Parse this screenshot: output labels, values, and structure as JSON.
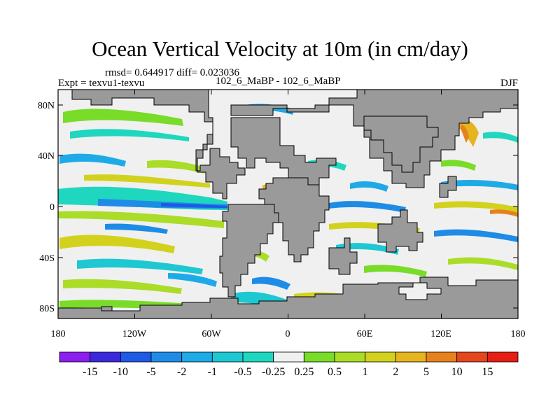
{
  "title": "Ocean Vertical Velocity at 10m (in cm/day)",
  "stats": "rmsd= 0.644917 diff= 0.023036",
  "expt": "Expt = texvu1-texvu",
  "cases": "102_6_MaBP - 102_6_MaBP",
  "season": "DJF",
  "lat_labels": [
    "80N",
    "40N",
    "0",
    "40S",
    "80S"
  ],
  "lon_labels": [
    "180",
    "120W",
    "60W",
    "0",
    "60E",
    "120E",
    "180"
  ],
  "colorbar": {
    "labels": [
      "-15",
      "-10",
      "-5",
      "-2",
      "-1",
      "-0.5",
      "-0.25",
      "0.25",
      "0.5",
      "1",
      "2",
      "5",
      "10",
      "15"
    ],
    "colors": [
      "#8c1ef0",
      "#3c28dc",
      "#1e5ae6",
      "#1e8ce6",
      "#1eaae6",
      "#1ec8d2",
      "#1ed7be",
      "#f0f0f0",
      "#78dc28",
      "#aadc28",
      "#d2d21e",
      "#e6b41e",
      "#e6821e",
      "#e6461e",
      "#e61e14"
    ]
  },
  "colors": {
    "land": "#9a9a9a",
    "ocean_background": "#f0f0f0"
  }
}
